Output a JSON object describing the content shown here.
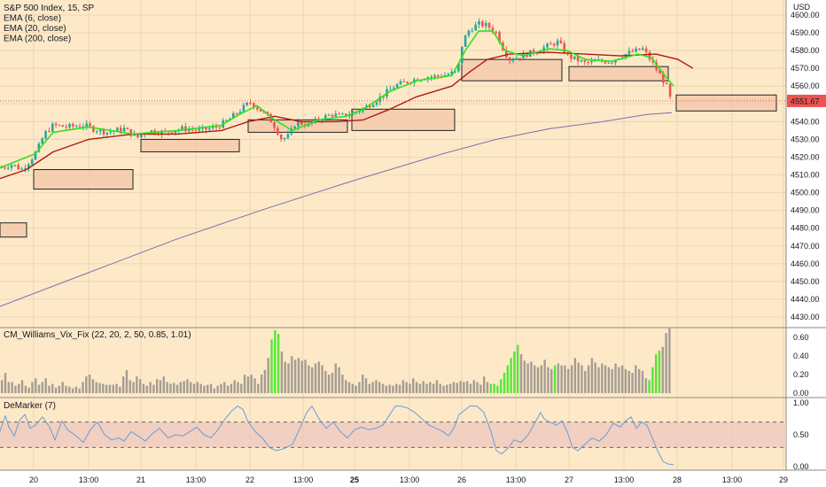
{
  "chart_data": [
    {
      "type": "candlestick",
      "legend": [
        "S&P 500 Index, 15, SP",
        "EMA (6, close)",
        "EMA (20, close)",
        "EMA (200, close)"
      ],
      "currency": "USD",
      "ylim": [
        4430,
        4604
      ],
      "yticks": [
        4430,
        4440,
        4450,
        4460,
        4470,
        4480,
        4490,
        4500,
        4510,
        4520,
        4530,
        4540,
        4550,
        4560,
        4570,
        4580,
        4590,
        4600
      ],
      "last_price": "4551.67",
      "price_path": [
        [
          0,
          4514
        ],
        [
          14,
          4516
        ],
        [
          24,
          4513
        ],
        [
          34,
          4518
        ],
        [
          42,
          4524
        ],
        [
          50,
          4533
        ],
        [
          60,
          4538
        ],
        [
          75,
          4537
        ],
        [
          95,
          4538
        ],
        [
          105,
          4536
        ],
        [
          120,
          4534
        ],
        [
          140,
          4536
        ],
        [
          155,
          4531
        ],
        [
          165,
          4535
        ],
        [
          185,
          4534
        ],
        [
          205,
          4536
        ],
        [
          225,
          4535
        ],
        [
          245,
          4537
        ],
        [
          258,
          4541
        ],
        [
          270,
          4546
        ],
        [
          282,
          4551
        ],
        [
          292,
          4547
        ],
        [
          300,
          4544
        ],
        [
          308,
          4539
        ],
        [
          318,
          4530
        ],
        [
          326,
          4532
        ],
        [
          334,
          4540
        ],
        [
          348,
          4538
        ],
        [
          362,
          4542
        ],
        [
          375,
          4544
        ],
        [
          385,
          4543
        ],
        [
          400,
          4545
        ],
        [
          412,
          4548
        ],
        [
          430,
          4554
        ],
        [
          445,
          4560
        ],
        [
          462,
          4563
        ],
        [
          478,
          4565
        ],
        [
          500,
          4566
        ],
        [
          516,
          4568
        ],
        [
          522,
          4585
        ],
        [
          530,
          4592
        ],
        [
          540,
          4595
        ],
        [
          550,
          4594
        ],
        [
          560,
          4590
        ],
        [
          566,
          4583
        ],
        [
          574,
          4575
        ],
        [
          582,
          4576
        ],
        [
          594,
          4578
        ],
        [
          606,
          4580
        ],
        [
          620,
          4583
        ],
        [
          630,
          4585
        ],
        [
          640,
          4577
        ],
        [
          650,
          4575
        ],
        [
          660,
          4573
        ],
        [
          675,
          4574
        ],
        [
          690,
          4574
        ],
        [
          700,
          4577
        ],
        [
          712,
          4579
        ],
        [
          725,
          4581
        ],
        [
          735,
          4574
        ],
        [
          745,
          4566
        ],
        [
          752,
          4560
        ],
        [
          757,
          4551.67
        ]
      ],
      "ema_6": [
        [
          0,
          4514
        ],
        [
          40,
          4522
        ],
        [
          60,
          4534
        ],
        [
          100,
          4537
        ],
        [
          150,
          4533
        ],
        [
          200,
          4535
        ],
        [
          250,
          4538
        ],
        [
          270,
          4544
        ],
        [
          290,
          4549
        ],
        [
          310,
          4541
        ],
        [
          330,
          4535
        ],
        [
          360,
          4541
        ],
        [
          390,
          4543
        ],
        [
          410,
          4547
        ],
        [
          440,
          4557
        ],
        [
          470,
          4563
        ],
        [
          510,
          4566
        ],
        [
          525,
          4580
        ],
        [
          540,
          4591
        ],
        [
          556,
          4591
        ],
        [
          570,
          4580
        ],
        [
          590,
          4577
        ],
        [
          620,
          4581
        ],
        [
          640,
          4580
        ],
        [
          660,
          4575
        ],
        [
          690,
          4574
        ],
        [
          720,
          4578
        ],
        [
          735,
          4576
        ],
        [
          750,
          4566
        ],
        [
          760,
          4560
        ]
      ],
      "ema_20": [
        [
          0,
          4508
        ],
        [
          30,
          4513
        ],
        [
          60,
          4523
        ],
        [
          100,
          4530
        ],
        [
          150,
          4533
        ],
        [
          200,
          4533
        ],
        [
          250,
          4535
        ],
        [
          280,
          4540
        ],
        [
          310,
          4543
        ],
        [
          340,
          4540
        ],
        [
          380,
          4540
        ],
        [
          410,
          4541
        ],
        [
          440,
          4547
        ],
        [
          470,
          4554
        ],
        [
          510,
          4560
        ],
        [
          530,
          4568
        ],
        [
          550,
          4575
        ],
        [
          575,
          4578
        ],
        [
          620,
          4579
        ],
        [
          660,
          4578
        ],
        [
          700,
          4577
        ],
        [
          740,
          4578
        ],
        [
          765,
          4575
        ],
        [
          782,
          4570
        ]
      ],
      "ema_200": [
        [
          0,
          4436
        ],
        [
          100,
          4455
        ],
        [
          200,
          4474
        ],
        [
          300,
          4491
        ],
        [
          400,
          4507
        ],
        [
          500,
          4522
        ],
        [
          560,
          4530
        ],
        [
          620,
          4536
        ],
        [
          680,
          4540
        ],
        [
          730,
          4544
        ],
        [
          758,
          4545
        ]
      ],
      "zones": [
        {
          "x0": 0,
          "x1": 30,
          "y_high": 4483,
          "y_low": 4475
        },
        {
          "x0": 38,
          "x1": 150,
          "y_high": 4513,
          "y_low": 4502
        },
        {
          "x0": 159,
          "x1": 270,
          "y_high": 4530,
          "y_low": 4523
        },
        {
          "x0": 280,
          "x1": 392,
          "y_high": 4541,
          "y_low": 4534
        },
        {
          "x0": 397,
          "x1": 513,
          "y_high": 4547,
          "y_low": 4535
        },
        {
          "x0": 521,
          "x1": 634,
          "y_high": 4575,
          "y_low": 4563
        },
        {
          "x0": 642,
          "x1": 754,
          "y_high": 4571,
          "y_low": 4563
        },
        {
          "x0": 763,
          "x1": 876,
          "y_high": 4555,
          "y_low": 4546
        }
      ]
    },
    {
      "type": "bar",
      "title": "CM_Williams_Vix_Fix (22, 20, 2, 50, 0.85, 1.01)",
      "ylim": [
        0,
        0.65
      ],
      "yticks": [
        "0.00",
        "0.20",
        "0.40",
        "0.60"
      ],
      "values": [
        0.14,
        0.22,
        0.12,
        0.12,
        0.08,
        0.1,
        0.14,
        0.08,
        0.06,
        0.12,
        0.16,
        0.09,
        0.12,
        0.16,
        0.08,
        0.1,
        0.06,
        0.08,
        0.12,
        0.08,
        0.07,
        0.05,
        0.07,
        0.05,
        0.12,
        0.18,
        0.2,
        0.15,
        0.12,
        0.11,
        0.1,
        0.09,
        0.09,
        0.09,
        0.1,
        0.07,
        0.18,
        0.25,
        0.14,
        0.12,
        0.18,
        0.15,
        0.1,
        0.08,
        0.12,
        0.09,
        0.15,
        0.14,
        0.18,
        0.12,
        0.1,
        0.11,
        0.09,
        0.12,
        0.13,
        0.15,
        0.12,
        0.1,
        0.12,
        0.1,
        0.08,
        0.09,
        0.1,
        0.05,
        0.08,
        0.1,
        0.12,
        0.08,
        0.1,
        0.14,
        0.12,
        0.1,
        0.2,
        0.18,
        0.2,
        0.16,
        0.1,
        0.2,
        0.25,
        0.38,
        0.58,
        0.68,
        0.64,
        0.45,
        0.34,
        0.32,
        0.4,
        0.36,
        0.38,
        0.35,
        0.36,
        0.3,
        0.28,
        0.32,
        0.34,
        0.3,
        0.24,
        0.2,
        0.22,
        0.32,
        0.28,
        0.2,
        0.14,
        0.12,
        0.1,
        0.08,
        0.12,
        0.2,
        0.16,
        0.1,
        0.12,
        0.14,
        0.12,
        0.1,
        0.08,
        0.09,
        0.08,
        0.1,
        0.09,
        0.14,
        0.12,
        0.1,
        0.16,
        0.12,
        0.1,
        0.13,
        0.1,
        0.12,
        0.1,
        0.14,
        0.1,
        0.08,
        0.09,
        0.1,
        0.12,
        0.11,
        0.13,
        0.12,
        0.13,
        0.1,
        0.14,
        0.12,
        0.09,
        0.18,
        0.12,
        0.1,
        0.1,
        0.08,
        0.15,
        0.22,
        0.3,
        0.38,
        0.45,
        0.52,
        0.42,
        0.35,
        0.32,
        0.34,
        0.3,
        0.28,
        0.3,
        0.36,
        0.28,
        0.26,
        0.3,
        0.32,
        0.3,
        0.3,
        0.26,
        0.3,
        0.38,
        0.33,
        0.3,
        0.24,
        0.3,
        0.38,
        0.33,
        0.28,
        0.32,
        0.3,
        0.28,
        0.26,
        0.32,
        0.28,
        0.3,
        0.26,
        0.24,
        0.22,
        0.3,
        0.26,
        0.24,
        0.16,
        0.14,
        0.28,
        0.42,
        0.46,
        0.5,
        0.65,
        0.7
      ],
      "green": [
        80,
        81,
        82,
        145,
        146,
        147,
        148,
        149,
        150,
        151,
        152,
        153,
        164,
        192,
        193,
        194,
        195
      ]
    },
    {
      "type": "line",
      "title": "DeMarker (7)",
      "ylim": [
        0,
        1
      ],
      "yticks": [
        "0.00",
        "0.50",
        "1.00"
      ],
      "band": [
        0.3,
        0.7
      ],
      "series": [
        [
          0,
          0.55
        ],
        [
          6,
          0.8
        ],
        [
          10,
          0.62
        ],
        [
          16,
          0.48
        ],
        [
          22,
          0.72
        ],
        [
          28,
          0.82
        ],
        [
          34,
          0.6
        ],
        [
          40,
          0.65
        ],
        [
          48,
          0.78
        ],
        [
          56,
          0.62
        ],
        [
          62,
          0.42
        ],
        [
          70,
          0.72
        ],
        [
          76,
          0.58
        ],
        [
          86,
          0.48
        ],
        [
          94,
          0.38
        ],
        [
          102,
          0.58
        ],
        [
          110,
          0.7
        ],
        [
          118,
          0.5
        ],
        [
          126,
          0.42
        ],
        [
          134,
          0.45
        ],
        [
          140,
          0.4
        ],
        [
          148,
          0.55
        ],
        [
          156,
          0.48
        ],
        [
          164,
          0.4
        ],
        [
          172,
          0.52
        ],
        [
          180,
          0.6
        ],
        [
          190,
          0.45
        ],
        [
          198,
          0.5
        ],
        [
          206,
          0.48
        ],
        [
          214,
          0.55
        ],
        [
          222,
          0.62
        ],
        [
          230,
          0.5
        ],
        [
          238,
          0.45
        ],
        [
          246,
          0.58
        ],
        [
          254,
          0.75
        ],
        [
          262,
          0.88
        ],
        [
          268,
          0.95
        ],
        [
          274,
          0.9
        ],
        [
          280,
          0.7
        ],
        [
          288,
          0.55
        ],
        [
          296,
          0.45
        ],
        [
          304,
          0.3
        ],
        [
          312,
          0.25
        ],
        [
          320,
          0.28
        ],
        [
          330,
          0.35
        ],
        [
          340,
          0.65
        ],
        [
          346,
          0.85
        ],
        [
          352,
          0.95
        ],
        [
          360,
          0.75
        ],
        [
          368,
          0.6
        ],
        [
          376,
          0.7
        ],
        [
          384,
          0.55
        ],
        [
          392,
          0.45
        ],
        [
          400,
          0.58
        ],
        [
          408,
          0.62
        ],
        [
          416,
          0.58
        ],
        [
          424,
          0.6
        ],
        [
          432,
          0.65
        ],
        [
          440,
          0.82
        ],
        [
          446,
          0.95
        ],
        [
          452,
          0.95
        ],
        [
          460,
          0.92
        ],
        [
          468,
          0.85
        ],
        [
          476,
          0.75
        ],
        [
          484,
          0.65
        ],
        [
          492,
          0.6
        ],
        [
          500,
          0.55
        ],
        [
          506,
          0.48
        ],
        [
          512,
          0.6
        ],
        [
          518,
          0.82
        ],
        [
          524,
          0.88
        ],
        [
          530,
          0.95
        ],
        [
          538,
          0.95
        ],
        [
          546,
          0.85
        ],
        [
          554,
          0.55
        ],
        [
          560,
          0.25
        ],
        [
          566,
          0.2
        ],
        [
          574,
          0.3
        ],
        [
          580,
          0.42
        ],
        [
          588,
          0.38
        ],
        [
          596,
          0.5
        ],
        [
          604,
          0.7
        ],
        [
          610,
          0.85
        ],
        [
          614,
          0.75
        ],
        [
          620,
          0.7
        ],
        [
          628,
          0.65
        ],
        [
          634,
          0.72
        ],
        [
          640,
          0.55
        ],
        [
          646,
          0.3
        ],
        [
          652,
          0.25
        ],
        [
          660,
          0.35
        ],
        [
          668,
          0.45
        ],
        [
          676,
          0.4
        ],
        [
          684,
          0.5
        ],
        [
          692,
          0.68
        ],
        [
          700,
          0.62
        ],
        [
          706,
          0.72
        ],
        [
          712,
          0.78
        ],
        [
          718,
          0.6
        ],
        [
          724,
          0.7
        ],
        [
          730,
          0.65
        ],
        [
          736,
          0.45
        ],
        [
          742,
          0.25
        ],
        [
          748,
          0.08
        ],
        [
          754,
          0.04
        ],
        [
          760,
          0.03
        ]
      ]
    }
  ],
  "time_axis": {
    "labels": [
      "20",
      "13:00",
      "21",
      "13:00",
      "22",
      "13:00",
      "25",
      "13:00",
      "26",
      "13:00",
      "27",
      "13:00",
      "28",
      "13:00",
      "29"
    ],
    "bold_index": 6
  }
}
